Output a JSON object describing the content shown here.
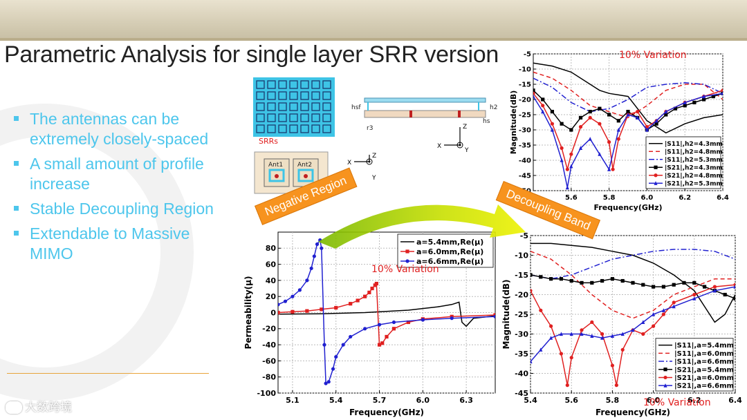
{
  "slide": {
    "title": "Parametric Analysis for single layer SRR version",
    "bullets": [
      "The antennas can be extremely closely-spaced",
      "A small amount of profile increase",
      "Stable Decoupling Region",
      "Extendable to Massive MIMO"
    ],
    "logo_text": "大数跨境",
    "tag_negative": "Negative Region",
    "tag_decoupling": "Decoupling Band",
    "colors": {
      "bullet": "#4dc6ec",
      "tag": "#f7931e",
      "variation": "#e02020"
    }
  },
  "figure": {
    "srr_label": "SRRs",
    "dims": [
      "hsf",
      "h2",
      "hs",
      "r3"
    ],
    "ant1": "Ant1",
    "ant2": "Ant2",
    "axis_top": {
      "x": "X",
      "y": "Y",
      "z": "Z"
    },
    "axis_bottom": {
      "x": "X",
      "y": "Y",
      "z": "Z"
    }
  },
  "chart_data": [
    {
      "type": "line",
      "id": "profile",
      "xlabel": "Frequency(GHz)",
      "ylabel": "Magnitude(dB)",
      "xlim": [
        5.4,
        6.4
      ],
      "ylim": [
        -50,
        -5
      ],
      "xticks": [
        5.6,
        5.8,
        6.0,
        6.2,
        6.4
      ],
      "yticks": [
        -5,
        -10,
        -15,
        -20,
        -25,
        -30,
        -35,
        -40,
        -45,
        -50
      ],
      "annotation": "10% Variation",
      "legend": "bottom-right",
      "series": [
        {
          "name": "|S11|,h2=4.3mm",
          "color": "#000000",
          "dash": "",
          "marker": "none",
          "x": [
            5.4,
            5.5,
            5.6,
            5.7,
            5.75,
            5.8,
            5.9,
            6.0,
            6.1,
            6.2,
            6.3,
            6.4
          ],
          "y": [
            -8,
            -9,
            -11,
            -15,
            -17,
            -18,
            -19,
            -27,
            -31,
            -28,
            -26,
            -25
          ]
        },
        {
          "name": "|S11|,h2=4.8mm",
          "color": "#e02020",
          "dash": "6,4",
          "marker": "none",
          "x": [
            5.4,
            5.5,
            5.6,
            5.7,
            5.8,
            5.9,
            6.0,
            6.1,
            6.2,
            6.3,
            6.4
          ],
          "y": [
            -11,
            -13,
            -17,
            -22,
            -24,
            -26,
            -22,
            -17,
            -15,
            -15,
            -20
          ]
        },
        {
          "name": "|S11|,h2=5.3mm",
          "color": "#2020d0",
          "dash": "8,3,2,3",
          "marker": "none",
          "x": [
            5.4,
            5.5,
            5.6,
            5.7,
            5.8,
            5.9,
            6.0,
            6.1,
            6.2,
            6.3,
            6.4
          ],
          "y": [
            -13,
            -16,
            -21,
            -24,
            -23,
            -20,
            -16,
            -15,
            -14.5,
            -15,
            -18
          ]
        },
        {
          "name": "|S21|,h2=4.3mm",
          "color": "#000000",
          "dash": "",
          "marker": "square",
          "x": [
            5.4,
            5.45,
            5.5,
            5.55,
            5.6,
            5.65,
            5.7,
            5.75,
            5.8,
            5.85,
            5.9,
            5.95,
            6.0,
            6.05,
            6.1,
            6.15,
            6.2,
            6.25,
            6.3,
            6.35,
            6.4
          ],
          "y": [
            -17,
            -20,
            -24,
            -28,
            -30,
            -26,
            -24,
            -23,
            -25,
            -27,
            -24,
            -26,
            -30,
            -28,
            -25,
            -23,
            -22,
            -21,
            -20,
            -19,
            -18
          ]
        },
        {
          "name": "|S21|,h2=4.8mm",
          "color": "#e02020",
          "dash": "",
          "marker": "circle",
          "x": [
            5.4,
            5.45,
            5.5,
            5.55,
            5.58,
            5.6,
            5.65,
            5.7,
            5.75,
            5.8,
            5.82,
            5.85,
            5.9,
            5.95,
            6.0,
            6.05,
            6.1,
            6.2,
            6.3,
            6.4
          ],
          "y": [
            -18,
            -22,
            -28,
            -36,
            -43,
            -38,
            -29,
            -26,
            -28,
            -34,
            -43,
            -33,
            -25,
            -24,
            -29,
            -27,
            -24,
            -21,
            -19,
            -17
          ]
        },
        {
          "name": "|S21|,h2=5.3mm",
          "color": "#2020d0",
          "dash": "",
          "marker": "triangle",
          "x": [
            5.4,
            5.45,
            5.5,
            5.55,
            5.58,
            5.6,
            5.65,
            5.7,
            5.75,
            5.8,
            5.85,
            5.9,
            5.95,
            6.0,
            6.05,
            6.1,
            6.2,
            6.3,
            6.4
          ],
          "y": [
            -19,
            -24,
            -30,
            -40,
            -49,
            -42,
            -36,
            -33,
            -38,
            -43,
            -30,
            -25,
            -26,
            -30,
            -27,
            -24,
            -21,
            -19,
            -18
          ]
        }
      ]
    },
    {
      "type": "line",
      "id": "permeability",
      "xlabel": "Frequency(GHz)",
      "ylabel": "Permeability(μ)",
      "xlim": [
        5.0,
        6.5
      ],
      "ylim": [
        -100,
        100
      ],
      "xticks": [
        5.1,
        5.4,
        5.7,
        6.0,
        6.3
      ],
      "yticks": [
        80,
        60,
        40,
        20,
        0,
        -20,
        -40,
        -60,
        -80,
        -100
      ],
      "annotation": "10% Variation",
      "legend": "top-right",
      "series": [
        {
          "name": "a=5.4mm,Re(μ)",
          "color": "#000000",
          "dash": "",
          "marker": "none",
          "x": [
            5.0,
            5.3,
            5.6,
            5.9,
            6.1,
            6.2,
            6.25,
            6.27,
            6.3,
            6.35,
            6.5
          ],
          "y": [
            -2,
            -1.5,
            0,
            3,
            7,
            10,
            13,
            -12,
            -17,
            -7,
            -4
          ]
        },
        {
          "name": "a=6.0mm,Re(μ)",
          "color": "#e02020",
          "dash": "",
          "marker": "square",
          "x": [
            5.0,
            5.1,
            5.2,
            5.3,
            5.4,
            5.5,
            5.55,
            5.6,
            5.63,
            5.65,
            5.67,
            5.68,
            5.7,
            5.72,
            5.75,
            5.8,
            5.9,
            6.0,
            6.2,
            6.5
          ],
          "y": [
            0,
            1,
            2,
            4,
            6,
            11,
            15,
            20,
            25,
            30,
            34,
            36,
            -40,
            -38,
            -30,
            -20,
            -12,
            -8,
            -5,
            -3
          ]
        },
        {
          "name": "a=6.6mm,Re(μ)",
          "color": "#2020d0",
          "dash": "",
          "marker": "circle",
          "x": [
            5.0,
            5.05,
            5.1,
            5.15,
            5.2,
            5.23,
            5.25,
            5.27,
            5.29,
            5.3,
            5.32,
            5.33,
            5.35,
            5.38,
            5.4,
            5.45,
            5.5,
            5.6,
            5.7,
            5.8,
            6.0,
            6.2,
            6.5
          ],
          "y": [
            10,
            14,
            20,
            28,
            40,
            55,
            70,
            85,
            90,
            80,
            -40,
            -88,
            -86,
            -70,
            -55,
            -40,
            -30,
            -20,
            -15,
            -12,
            -9,
            -7,
            -5
          ]
        }
      ]
    },
    {
      "type": "line",
      "id": "decoupling",
      "xlabel": "Frequency(GHz)",
      "ylabel": "Magnitude(dB)",
      "xlim": [
        5.4,
        6.4
      ],
      "ylim": [
        -45,
        -5
      ],
      "xticks": [
        5.4,
        5.6,
        5.8,
        6.0,
        6.2,
        6.4
      ],
      "yticks": [
        -5,
        -10,
        -15,
        -20,
        -25,
        -30,
        -35,
        -40,
        -45
      ],
      "annotation": "10% Variation",
      "legend": "bottom-right",
      "series": [
        {
          "name": "|S11|,a=5.4mm",
          "color": "#000000",
          "dash": "",
          "marker": "none",
          "x": [
            5.4,
            5.5,
            5.6,
            5.7,
            5.8,
            5.9,
            6.0,
            6.1,
            6.2,
            6.25,
            6.3,
            6.35,
            6.4
          ],
          "y": [
            -7,
            -7,
            -7.5,
            -8,
            -9,
            -10,
            -12,
            -15,
            -19,
            -23,
            -27,
            -25,
            -20
          ]
        },
        {
          "name": "|S11|,a=6.0mm",
          "color": "#e02020",
          "dash": "6,4",
          "marker": "none",
          "x": [
            5.4,
            5.5,
            5.6,
            5.7,
            5.8,
            5.9,
            6.0,
            6.1,
            6.2,
            6.3,
            6.4
          ],
          "y": [
            -9,
            -11,
            -15,
            -20,
            -24,
            -26,
            -24,
            -20,
            -18,
            -16,
            -16
          ]
        },
        {
          "name": "|S11|,a=6.6mm",
          "color": "#2020d0",
          "dash": "8,3,2,3",
          "marker": "none",
          "x": [
            5.4,
            5.5,
            5.6,
            5.7,
            5.8,
            5.9,
            6.0,
            6.1,
            6.2,
            6.3,
            6.4
          ],
          "y": [
            -15,
            -16,
            -15,
            -13,
            -11,
            -10,
            -9,
            -8.5,
            -8.5,
            -9,
            -11
          ]
        },
        {
          "name": "|S21|,a=5.4mm",
          "color": "#000000",
          "dash": "",
          "marker": "square",
          "x": [
            5.4,
            5.45,
            5.5,
            5.55,
            5.6,
            5.65,
            5.7,
            5.75,
            5.8,
            5.85,
            5.9,
            5.95,
            6.0,
            6.05,
            6.1,
            6.15,
            6.2,
            6.25,
            6.3,
            6.35,
            6.4
          ],
          "y": [
            -15,
            -15.5,
            -16,
            -16,
            -16.5,
            -17,
            -17,
            -16.5,
            -16,
            -16.5,
            -17,
            -17.5,
            -18,
            -18,
            -17.5,
            -17,
            -17,
            -18,
            -19,
            -20,
            -21
          ]
        },
        {
          "name": "|S21|,a=6.0mm",
          "color": "#e02020",
          "dash": "",
          "marker": "circle",
          "x": [
            5.4,
            5.45,
            5.5,
            5.55,
            5.58,
            5.6,
            5.65,
            5.7,
            5.75,
            5.8,
            5.82,
            5.85,
            5.9,
            5.95,
            6.0,
            6.05,
            6.1,
            6.2,
            6.3,
            6.4
          ],
          "y": [
            -19,
            -24,
            -28,
            -35,
            -43,
            -36,
            -29,
            -27,
            -30,
            -38,
            -43,
            -34,
            -29,
            -30,
            -28,
            -25,
            -22,
            -20,
            -18,
            -17.5
          ]
        },
        {
          "name": "|S21|,a=6.6mm",
          "color": "#2020d0",
          "dash": "",
          "marker": "triangle",
          "x": [
            5.4,
            5.45,
            5.5,
            5.55,
            5.6,
            5.65,
            5.7,
            5.75,
            5.8,
            5.85,
            5.9,
            5.95,
            6.0,
            6.05,
            6.1,
            6.2,
            6.3,
            6.4
          ],
          "y": [
            -37,
            -34,
            -31,
            -30,
            -30,
            -30,
            -30.5,
            -31,
            -30.5,
            -30,
            -29,
            -27,
            -25,
            -24,
            -23,
            -21,
            -19,
            -18
          ]
        }
      ]
    }
  ]
}
